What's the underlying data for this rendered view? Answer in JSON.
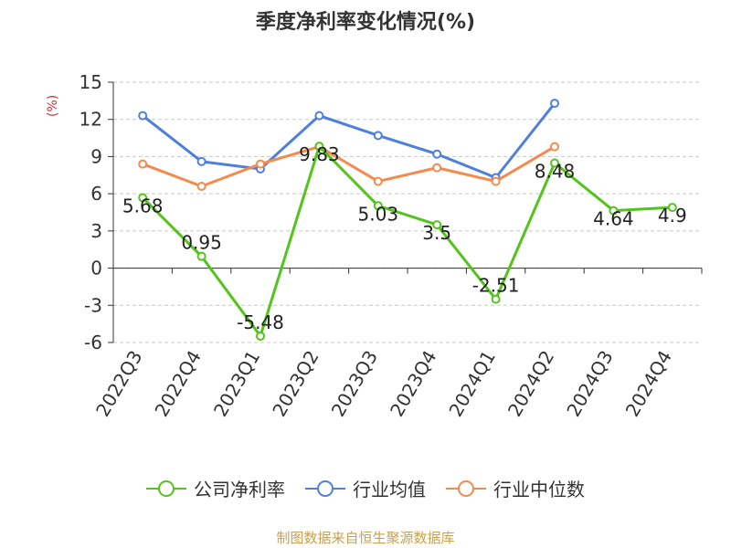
{
  "chart_data": {
    "type": "line",
    "title": "季度净利率变化情况(%)",
    "ylabel": "(%)",
    "categories": [
      "2022Q3",
      "2022Q4",
      "2023Q1",
      "2023Q2",
      "2023Q3",
      "2023Q4",
      "2024Q1",
      "2024Q2",
      "2024Q3",
      "2024Q4"
    ],
    "ylim": [
      -6,
      15
    ],
    "yticks": [
      -6,
      -3,
      0,
      3,
      6,
      9,
      12,
      15
    ],
    "grid": true,
    "legend_position": "bottom",
    "series": [
      {
        "name": "公司净利率",
        "color": "#52c41a",
        "values": [
          5.68,
          0.95,
          -5.48,
          9.83,
          5.03,
          3.5,
          -2.51,
          8.48,
          4.64,
          4.9
        ],
        "labels": [
          "5.68",
          "0.95",
          "-5.48",
          "9.83",
          "5.03",
          "3.5",
          "-2.51",
          "8.48",
          "4.64",
          "4.9"
        ]
      },
      {
        "name": "行业均值",
        "color": "#4e7fe0",
        "values": [
          12.3,
          8.6,
          8.0,
          12.3,
          10.7,
          9.2,
          7.3,
          13.3,
          null,
          null
        ]
      },
      {
        "name": "行业中位数",
        "color": "#f58a4f",
        "values": [
          8.4,
          6.6,
          8.4,
          9.8,
          7.0,
          8.1,
          7.0,
          9.8,
          null,
          null
        ]
      }
    ]
  },
  "source": "制图数据来自恒生聚源数据库"
}
